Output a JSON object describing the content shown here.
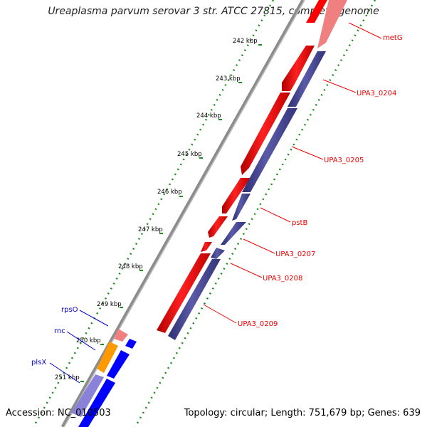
{
  "title": "Ureaplasma parvum serovar 3 str. ATCC 27815, complete genome",
  "accession": "Accession: NC_010503",
  "summary": "Topology: circular; Length: 751,679 bp; Genes: 639",
  "ticks": [
    "242 kbp",
    "243 kbp",
    "244 kbp",
    "245 kbp",
    "246 kbp",
    "247 kbp",
    "248 kbp",
    "249 kbp",
    "250 kbp",
    "251 kbp"
  ],
  "genes_right": [
    "metG",
    "UPA3_0204",
    "UPA3_0205",
    "pstB",
    "UPA3_0207",
    "UPA3_0208",
    "UPA3_0209"
  ],
  "genes_left": [
    "rpsO",
    "rnc",
    "plsX"
  ],
  "colors": {
    "cds_red": "#ff0000",
    "cds_red_light": "#f08080",
    "feature_navy": "#4b4b9b",
    "feature_blue": "#0000ff",
    "feature_lavender": "#8a82d8",
    "feature_orange": "#ff9900",
    "tick_green": "#1e8c1e",
    "label_red": "#ee0000",
    "label_blue": "#0000cc",
    "backbone_gray": "#8c8c8c"
  }
}
